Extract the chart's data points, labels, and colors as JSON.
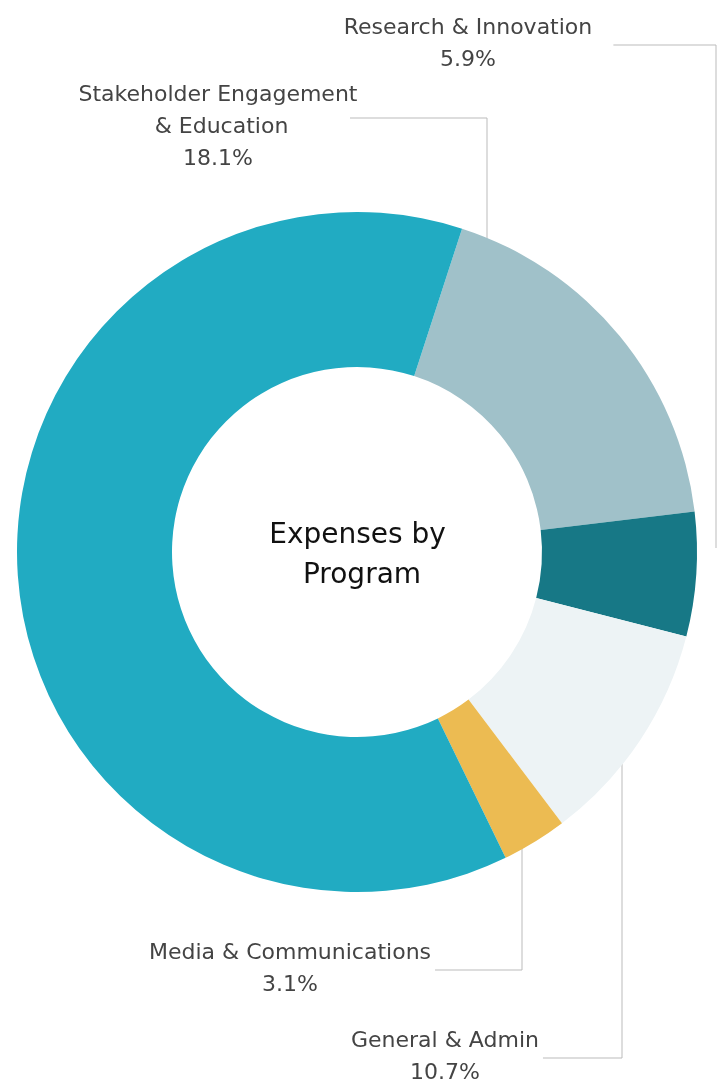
{
  "chart_data": {
    "type": "donut",
    "title": "Expenses by Program",
    "categories": [
      "Stakeholder Engagement & Education",
      "Research & Innovation",
      "General & Admin",
      "Media & Communications",
      null
    ],
    "values": [
      18.1,
      5.9,
      10.7,
      3.1,
      62.2
    ],
    "value_labels": [
      "18.1%",
      "5.9%",
      "10.7%",
      "3.1%",
      null
    ],
    "colors": [
      "#a0c1c9",
      "#177886",
      "#edf3f5",
      "#ecbb52",
      "#21abc2"
    ],
    "legend": false
  }
}
